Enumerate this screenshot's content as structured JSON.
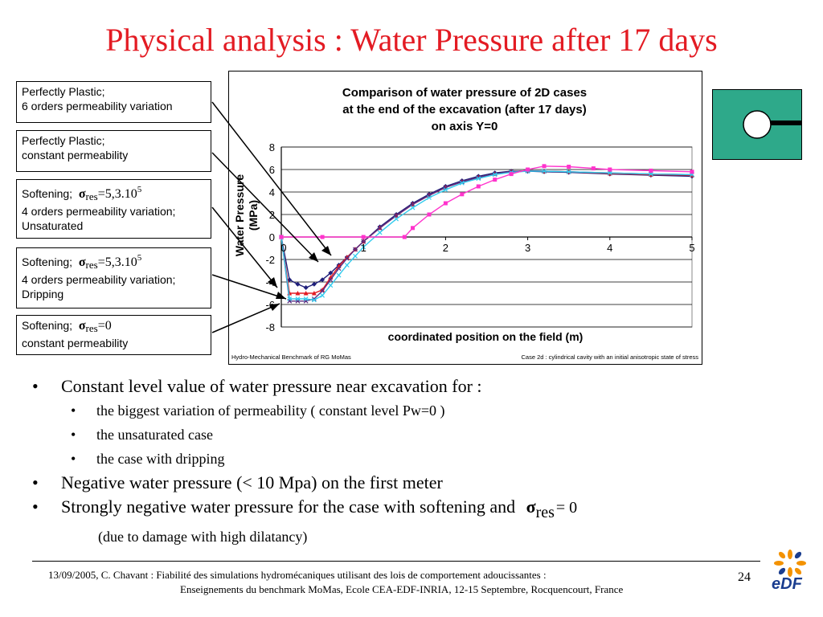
{
  "slide_title": "Physical analysis : Water Pressure after 17 days",
  "legend_boxes": {
    "box1": {
      "line1": "Perfectly Plastic;",
      "line2": "6 orders permeability variation"
    },
    "box2": {
      "line1": "Perfectly Plastic;",
      "line2": "constant permeability"
    },
    "box3": {
      "prefix": "Softening;",
      "sigma": "σ",
      "sub": "res",
      "eq": "=5,3.10",
      "sup": "5",
      "line2": "4 orders permeability variation;",
      "line3": "Unsaturated"
    },
    "box4": {
      "prefix": "Softening;",
      "sigma": "σ",
      "sub": "res",
      "eq": "=5,3.10",
      "sup": "5",
      "line2": "4 orders permeability variation;",
      "line3": "Dripping"
    },
    "box5": {
      "prefix": "Softening;",
      "sigma": "σ",
      "sub": "res",
      "eq": "=0",
      "line2": "constant permeability"
    }
  },
  "chart_data": {
    "type": "line",
    "title": "Comparison of water pressure of 2D cases at the end of the excavation (after 17 days) on axis Y=0",
    "title_lines": [
      "Comparison of water pressure of 2D cases",
      "at the end of the excavation (after 17 days)",
      "on axis Y=0"
    ],
    "xlabel": "coordinated position on the field (m)",
    "ylabel_lines": [
      "Water Pressure",
      "(MPa)"
    ],
    "xlim": [
      0,
      5
    ],
    "ylim": [
      -8,
      8
    ],
    "xticks": [
      0,
      1,
      2,
      3,
      4,
      5
    ],
    "yticks": [
      8,
      6,
      4,
      2,
      0,
      -2,
      -4,
      -6,
      -8
    ],
    "grid": true,
    "legend": "external-boxes",
    "note_left": "Hydro-Mechanical Benchmark of RG MoMas",
    "note_right": "Case 2d : cylindrical cavity with an initial anisotropic state of stress",
    "series": [
      {
        "color": "#1f1f7a",
        "marker": "diamond",
        "x": [
          0,
          0.1,
          0.2,
          0.3,
          0.4,
          0.5,
          0.6,
          0.7,
          0.8,
          0.9,
          1.0,
          1.2,
          1.4,
          1.6,
          1.8,
          2.0,
          2.2,
          2.4,
          2.6,
          2.8,
          3.0,
          3.2,
          3.5,
          4.0,
          4.5,
          5.0
        ],
        "y": [
          0,
          -3.8,
          -4.2,
          -4.5,
          -4.2,
          -3.8,
          -3.2,
          -2.5,
          -1.8,
          -1.1,
          -0.4,
          0.9,
          2.0,
          3.0,
          3.8,
          4.5,
          5.0,
          5.4,
          5.7,
          5.85,
          5.85,
          5.8,
          5.75,
          5.6,
          5.5,
          5.4
        ]
      },
      {
        "color": "#e31b23",
        "marker": "triangle",
        "x": [
          0,
          0.1,
          0.2,
          0.3,
          0.4,
          0.5,
          0.6,
          0.7,
          0.8,
          0.9,
          1.0,
          1.2,
          1.4,
          1.6,
          1.8,
          2.0,
          2.2,
          2.4,
          2.6,
          2.8,
          3.0,
          3.2,
          3.5,
          4.0,
          4.5,
          5.0
        ],
        "y": [
          0,
          -5.0,
          -5.0,
          -5.0,
          -5.0,
          -4.7,
          -3.6,
          -2.6,
          -1.8,
          -1.1,
          -0.4,
          0.8,
          1.9,
          2.9,
          3.7,
          4.4,
          4.9,
          5.3,
          5.6,
          5.8,
          5.9,
          5.85,
          5.8,
          5.65,
          5.55,
          5.5
        ]
      },
      {
        "color": "#5a2d82",
        "marker": "cross",
        "x": [
          0,
          0.1,
          0.2,
          0.3,
          0.4,
          0.5,
          0.6,
          0.7,
          0.8,
          0.9,
          1.0,
          1.2,
          1.4,
          1.6,
          1.8,
          2.0,
          2.2,
          2.4,
          2.6,
          2.8,
          3.0,
          3.2,
          3.5,
          4.0,
          4.5,
          5.0
        ],
        "y": [
          0,
          -5.7,
          -5.7,
          -5.7,
          -5.5,
          -4.8,
          -3.8,
          -2.8,
          -1.9,
          -1.1,
          -0.4,
          0.8,
          1.9,
          2.9,
          3.7,
          4.4,
          4.9,
          5.3,
          5.6,
          5.8,
          5.9,
          5.85,
          5.8,
          5.7,
          5.6,
          5.55
        ]
      },
      {
        "color": "#33ccee",
        "marker": "cross",
        "x": [
          0,
          0.1,
          0.2,
          0.3,
          0.4,
          0.5,
          0.6,
          0.7,
          0.8,
          0.9,
          1.0,
          1.2,
          1.4,
          1.6,
          1.8,
          2.0,
          2.2,
          2.4,
          2.6,
          2.8,
          3.0,
          3.2,
          3.5,
          4.0,
          4.5,
          5.0
        ],
        "y": [
          0,
          -5.5,
          -5.5,
          -5.5,
          -5.6,
          -5.2,
          -4.3,
          -3.4,
          -2.5,
          -1.7,
          -0.9,
          0.4,
          1.6,
          2.6,
          3.5,
          4.2,
          4.8,
          5.2,
          5.55,
          5.75,
          5.85,
          5.85,
          5.8,
          5.7,
          5.6,
          5.55
        ]
      },
      {
        "color": "#ff33cc",
        "marker": "square",
        "x": [
          0,
          0.5,
          1.0,
          1.5,
          1.6,
          1.8,
          2.0,
          2.2,
          2.4,
          2.6,
          2.8,
          3.0,
          3.2,
          3.5,
          3.8,
          4.0,
          4.5,
          5.0
        ],
        "y": [
          0,
          0,
          0,
          0,
          0.8,
          2.0,
          3.0,
          3.8,
          4.5,
          5.1,
          5.6,
          6.0,
          6.3,
          6.25,
          6.1,
          6.0,
          5.9,
          5.8
        ]
      }
    ]
  },
  "bullets": {
    "b1": "Constant level value of water pressure near excavation for :",
    "b1_sub": [
      "the biggest variation of permeability ( constant level Pw=0 )",
      "the unsaturated case",
      "the case with dripping"
    ],
    "b2": "Negative water pressure (< 10 Mpa) on the first meter",
    "b3": "Strongly negative water pressure for the case with softening and",
    "b3_sigma": "σ",
    "b3_sub": "res",
    "b3_eq": "= 0",
    "b3_note": "(due to damage with high dilatancy)"
  },
  "footer": {
    "line1": "13/09/2005, C. Chavant : Fiabilité des simulations hydromécaniques utilisant des lois de comportement adoucissantes :",
    "line2": "Enseignements du benchmark MoMas, Ecole CEA-EDF-INRIA, 12-15 Septembre,  Rocquencourt, France",
    "page_number": "24",
    "logo_text": "eDF"
  }
}
